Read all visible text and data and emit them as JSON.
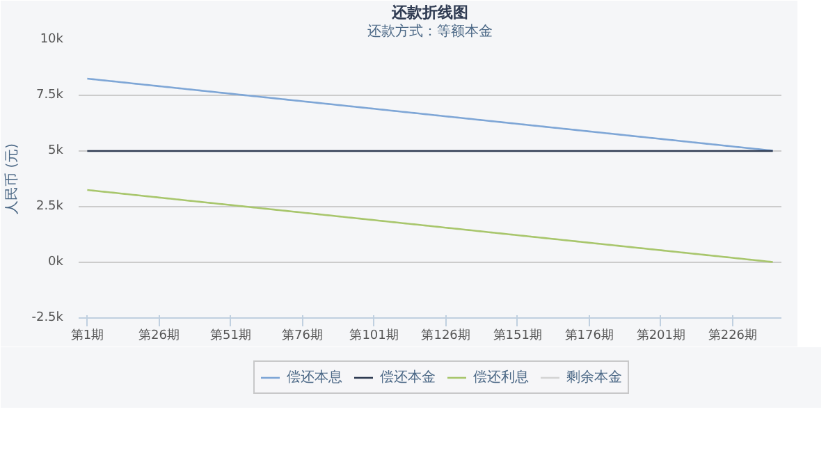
{
  "chart_data": {
    "type": "line",
    "title": "还款折线图",
    "subtitle": "还款方式：等额本金",
    "ylabel": "人民币 (元)",
    "categories": [
      "第1期",
      null,
      null,
      null,
      null,
      null,
      null,
      null,
      null,
      null,
      null,
      null,
      null,
      null,
      null,
      null,
      null,
      null,
      null,
      null,
      null,
      null,
      null,
      null,
      null,
      "第26期",
      null,
      null,
      null,
      null,
      null,
      null,
      null,
      null,
      null,
      null,
      null,
      null,
      null,
      null,
      null,
      null,
      null,
      null,
      null,
      null,
      null,
      null,
      null,
      null,
      "第51期",
      null,
      null,
      null,
      null,
      null,
      null,
      null,
      null,
      null,
      null,
      null,
      null,
      null,
      null,
      null,
      null,
      null,
      null,
      null,
      null,
      null,
      null,
      null,
      null,
      "第76期",
      null,
      null,
      null,
      null,
      null,
      null,
      null,
      null,
      null,
      null,
      null,
      null,
      null,
      null,
      null,
      null,
      null,
      null,
      null,
      null,
      null,
      null,
      null,
      null,
      "第101期",
      null,
      null,
      null,
      null,
      null,
      null,
      null,
      null,
      null,
      null,
      null,
      null,
      null,
      null,
      null,
      null,
      null,
      null,
      null,
      null,
      null,
      null,
      null,
      null,
      "第126期",
      null,
      null,
      null,
      null,
      null,
      null,
      null,
      null,
      null,
      null,
      null,
      null,
      null,
      null,
      null,
      null,
      null,
      null,
      null,
      null,
      null,
      null,
      null,
      null,
      "第151期",
      null,
      null,
      null,
      null,
      null,
      null,
      null,
      null,
      null,
      null,
      null,
      null,
      null,
      null,
      null,
      null,
      null,
      null,
      null,
      null,
      null,
      null,
      null,
      null,
      "第176期",
      null,
      null,
      null,
      null,
      null,
      null,
      null,
      null,
      null,
      null,
      null,
      null,
      null,
      null,
      null,
      null,
      null,
      null,
      null,
      null,
      null,
      null,
      null,
      null,
      "第201期",
      null,
      null,
      null,
      null,
      null,
      null,
      null,
      null,
      null,
      null,
      null,
      null,
      null,
      null,
      null,
      null,
      null,
      null,
      null,
      null,
      null,
      null,
      null,
      null,
      "第226期",
      null,
      null,
      null,
      null,
      null,
      null,
      null,
      null,
      null,
      null,
      null,
      null,
      null,
      null
    ],
    "ylim": [
      -2500,
      10000
    ],
    "yticks": [
      {
        "value": -2500,
        "label": "-2.5k"
      },
      {
        "value": 0,
        "label": "0k"
      },
      {
        "value": 2500,
        "label": "2.5k"
      },
      {
        "value": 5000,
        "label": "5k"
      },
      {
        "value": 7500,
        "label": "7.5k"
      },
      {
        "value": 10000,
        "label": "10k"
      }
    ],
    "grid": "y",
    "legend": "bottom",
    "line_style": "solid",
    "series": [
      {
        "name": "偿还本息",
        "color": "#7ea6d6",
        "values": [
          8250,
          8236,
          8223,
          8209,
          8196,
          8182,
          8169,
          8155,
          8142,
          8128,
          8115,
          8101,
          8088,
          8074,
          8060,
          8047,
          8033,
          8020,
          8006,
          7993,
          7979,
          7966,
          7952,
          7939,
          7925,
          7911,
          7898,
          7884,
          7871,
          7857,
          7844,
          7830,
          7817,
          7803,
          7790,
          7776,
          7763,
          7749,
          7735,
          7722,
          7708,
          7695,
          7681,
          7668,
          7654,
          7641,
          7627,
          7614,
          7600,
          7586,
          7573,
          7559,
          7546,
          7532,
          7519,
          7505,
          7492,
          7478,
          7465,
          7451,
          7438,
          7424,
          7410,
          7397,
          7383,
          7370,
          7356,
          7343,
          7329,
          7316,
          7302,
          7289,
          7275,
          7261,
          7248,
          7234,
          7221,
          7207,
          7194,
          7180,
          7167,
          7153,
          7140,
          7126,
          7113,
          7099,
          7085,
          7072,
          7058,
          7045,
          7031,
          7018,
          7004,
          6991,
          6977,
          6964,
          6950,
          6936,
          6923,
          6909,
          6896,
          6882,
          6869,
          6855,
          6842,
          6828,
          6815,
          6801,
          6788,
          6774,
          6760,
          6747,
          6733,
          6720,
          6706,
          6693,
          6679,
          6666,
          6652,
          6639,
          6625,
          6611,
          6598,
          6584,
          6571,
          6557,
          6544,
          6530,
          6517,
          6503,
          6490,
          6476,
          6463,
          6449,
          6435,
          6422,
          6408,
          6395,
          6381,
          6368,
          6354,
          6341,
          6327,
          6314,
          6300,
          6286,
          6273,
          6259,
          6246,
          6232,
          6219,
          6205,
          6192,
          6178,
          6165,
          6151,
          6138,
          6124,
          6110,
          6097,
          6083,
          6070,
          6056,
          6043,
          6029,
          6016,
          6002,
          5989,
          5975,
          5961,
          5948,
          5934,
          5921,
          5907,
          5894,
          5880,
          5867,
          5853,
          5840,
          5826,
          5813,
          5799,
          5785,
          5772,
          5758,
          5745,
          5731,
          5718,
          5704,
          5691,
          5677,
          5664,
          5650,
          5636,
          5623,
          5609,
          5596,
          5582,
          5569,
          5555,
          5542,
          5528,
          5515,
          5501,
          5488,
          5474,
          5460,
          5447,
          5433,
          5420,
          5406,
          5393,
          5379,
          5366,
          5352,
          5339,
          5325,
          5311,
          5298,
          5284,
          5271,
          5257,
          5244,
          5230,
          5217,
          5203,
          5190,
          5176,
          5163,
          5149,
          5135,
          5122,
          5108,
          5095,
          5081,
          5068,
          5054,
          5041,
          5027,
          5014
        ]
      },
      {
        "name": "偿还本金",
        "color": "#2f3b52",
        "values": [
          5000,
          5000,
          5000,
          5000,
          5000,
          5000,
          5000,
          5000,
          5000,
          5000,
          5000,
          5000,
          5000,
          5000,
          5000,
          5000,
          5000,
          5000,
          5000,
          5000,
          5000,
          5000,
          5000,
          5000,
          5000,
          5000,
          5000,
          5000,
          5000,
          5000,
          5000,
          5000,
          5000,
          5000,
          5000,
          5000,
          5000,
          5000,
          5000,
          5000,
          5000,
          5000,
          5000,
          5000,
          5000,
          5000,
          5000,
          5000,
          5000,
          5000,
          5000,
          5000,
          5000,
          5000,
          5000,
          5000,
          5000,
          5000,
          5000,
          5000,
          5000,
          5000,
          5000,
          5000,
          5000,
          5000,
          5000,
          5000,
          5000,
          5000,
          5000,
          5000,
          5000,
          5000,
          5000,
          5000,
          5000,
          5000,
          5000,
          5000,
          5000,
          5000,
          5000,
          5000,
          5000,
          5000,
          5000,
          5000,
          5000,
          5000,
          5000,
          5000,
          5000,
          5000,
          5000,
          5000,
          5000,
          5000,
          5000,
          5000,
          5000,
          5000,
          5000,
          5000,
          5000,
          5000,
          5000,
          5000,
          5000,
          5000,
          5000,
          5000,
          5000,
          5000,
          5000,
          5000,
          5000,
          5000,
          5000,
          5000,
          5000,
          5000,
          5000,
          5000,
          5000,
          5000,
          5000,
          5000,
          5000,
          5000,
          5000,
          5000,
          5000,
          5000,
          5000,
          5000,
          5000,
          5000,
          5000,
          5000,
          5000,
          5000,
          5000,
          5000,
          5000,
          5000,
          5000,
          5000,
          5000,
          5000,
          5000,
          5000,
          5000,
          5000,
          5000,
          5000,
          5000,
          5000,
          5000,
          5000,
          5000,
          5000,
          5000,
          5000,
          5000,
          5000,
          5000,
          5000,
          5000,
          5000,
          5000,
          5000,
          5000,
          5000,
          5000,
          5000,
          5000,
          5000,
          5000,
          5000,
          5000,
          5000,
          5000,
          5000,
          5000,
          5000,
          5000,
          5000,
          5000,
          5000,
          5000,
          5000,
          5000,
          5000,
          5000,
          5000,
          5000,
          5000,
          5000,
          5000,
          5000,
          5000,
          5000,
          5000,
          5000,
          5000,
          5000,
          5000,
          5000,
          5000,
          5000,
          5000,
          5000,
          5000,
          5000,
          5000,
          5000,
          5000,
          5000,
          5000,
          5000,
          5000,
          5000,
          5000,
          5000,
          5000,
          5000,
          5000,
          5000,
          5000,
          5000,
          5000,
          5000,
          5000,
          5000,
          5000,
          5000,
          5000,
          5000,
          5000
        ]
      },
      {
        "name": "偿还利息",
        "color": "#a8c66c",
        "values": [
          3250,
          3236,
          3223,
          3209,
          3196,
          3182,
          3169,
          3155,
          3142,
          3128,
          3115,
          3101,
          3088,
          3074,
          3060,
          3047,
          3033,
          3020,
          3006,
          2993,
          2979,
          2966,
          2952,
          2939,
          2925,
          2911,
          2898,
          2884,
          2871,
          2857,
          2844,
          2830,
          2817,
          2803,
          2790,
          2776,
          2763,
          2749,
          2735,
          2722,
          2708,
          2695,
          2681,
          2668,
          2654,
          2641,
          2627,
          2614,
          2600,
          2586,
          2573,
          2559,
          2546,
          2532,
          2519,
          2505,
          2492,
          2478,
          2465,
          2451,
          2438,
          2424,
          2410,
          2397,
          2383,
          2370,
          2356,
          2343,
          2329,
          2316,
          2302,
          2289,
          2275,
          2261,
          2248,
          2234,
          2221,
          2207,
          2194,
          2180,
          2167,
          2153,
          2140,
          2126,
          2113,
          2099,
          2085,
          2072,
          2058,
          2045,
          2031,
          2018,
          2004,
          1991,
          1977,
          1964,
          1950,
          1936,
          1923,
          1909,
          1896,
          1882,
          1869,
          1855,
          1842,
          1828,
          1815,
          1801,
          1788,
          1774,
          1760,
          1747,
          1733,
          1720,
          1706,
          1693,
          1679,
          1666,
          1652,
          1639,
          1625,
          1611,
          1598,
          1584,
          1571,
          1557,
          1544,
          1530,
          1517,
          1503,
          1490,
          1476,
          1463,
          1449,
          1435,
          1422,
          1408,
          1395,
          1381,
          1368,
          1354,
          1341,
          1327,
          1314,
          1300,
          1286,
          1273,
          1259,
          1246,
          1232,
          1219,
          1205,
          1192,
          1178,
          1165,
          1151,
          1138,
          1124,
          1110,
          1097,
          1083,
          1070,
          1056,
          1043,
          1029,
          1016,
          1002,
          989,
          975,
          961,
          948,
          934,
          921,
          907,
          894,
          880,
          867,
          853,
          840,
          826,
          813,
          799,
          785,
          772,
          758,
          745,
          731,
          718,
          704,
          691,
          677,
          664,
          650,
          636,
          623,
          609,
          596,
          582,
          569,
          555,
          542,
          528,
          515,
          501,
          488,
          474,
          460,
          447,
          433,
          420,
          406,
          393,
          379,
          366,
          352,
          339,
          325,
          311,
          298,
          284,
          271,
          257,
          244,
          230,
          217,
          203,
          190,
          176,
          163,
          149,
          135,
          122,
          108,
          95,
          81,
          68,
          54,
          41,
          27,
          14
        ]
      },
      {
        "name": "剩余本金",
        "color": "#d4d4d4",
        "values": [
          null,
          null,
          null,
          null,
          null,
          null,
          null,
          null,
          null,
          null,
          null,
          null,
          null,
          null,
          null,
          null,
          null,
          null,
          null,
          null,
          null,
          null,
          null,
          null,
          null,
          null,
          null,
          null,
          null,
          null,
          null,
          null,
          null,
          null,
          null,
          null,
          null,
          null,
          null,
          null,
          null,
          null,
          null,
          null,
          null,
          null,
          null,
          null,
          null,
          null,
          null,
          null,
          null,
          null,
          null,
          null,
          null,
          null,
          null,
          null,
          null,
          null,
          null,
          null,
          null,
          null,
          null,
          null,
          null,
          null,
          null,
          null,
          null,
          null,
          null,
          null,
          null,
          null,
          null,
          null,
          null,
          null,
          null,
          null,
          null,
          null,
          null,
          null,
          null,
          null,
          null,
          null,
          null,
          null,
          null,
          null,
          null,
          null,
          null,
          null,
          null,
          null,
          null,
          null,
          null,
          null,
          null,
          null,
          null,
          null,
          null,
          null,
          null,
          null,
          null,
          null,
          null,
          null,
          null,
          null,
          null,
          null,
          null,
          null,
          null,
          null,
          null,
          null,
          null,
          null,
          null,
          null,
          null,
          null,
          null,
          null,
          null,
          null,
          null,
          null,
          null,
          null,
          null,
          null,
          null,
          null,
          null,
          null,
          null,
          null,
          null,
          null,
          null,
          null,
          null,
          null,
          null,
          null,
          null,
          null,
          null,
          null,
          null,
          null,
          null,
          null,
          null,
          null,
          null,
          null,
          null,
          null,
          null,
          null,
          null,
          null,
          null,
          null,
          null,
          null,
          null,
          null,
          null,
          null,
          null,
          null,
          null,
          null,
          null,
          null,
          null,
          null,
          null,
          null,
          null,
          null,
          null,
          null,
          null,
          null,
          null,
          null,
          null,
          null,
          null,
          null,
          null,
          null,
          null,
          null,
          null,
          null,
          null,
          null,
          null,
          null,
          null,
          null,
          null,
          null,
          null,
          null,
          null,
          null,
          null,
          null,
          null,
          null,
          null,
          null,
          null,
          null,
          null,
          null,
          null,
          null,
          null,
          null,
          null,
          null
        ]
      }
    ]
  }
}
